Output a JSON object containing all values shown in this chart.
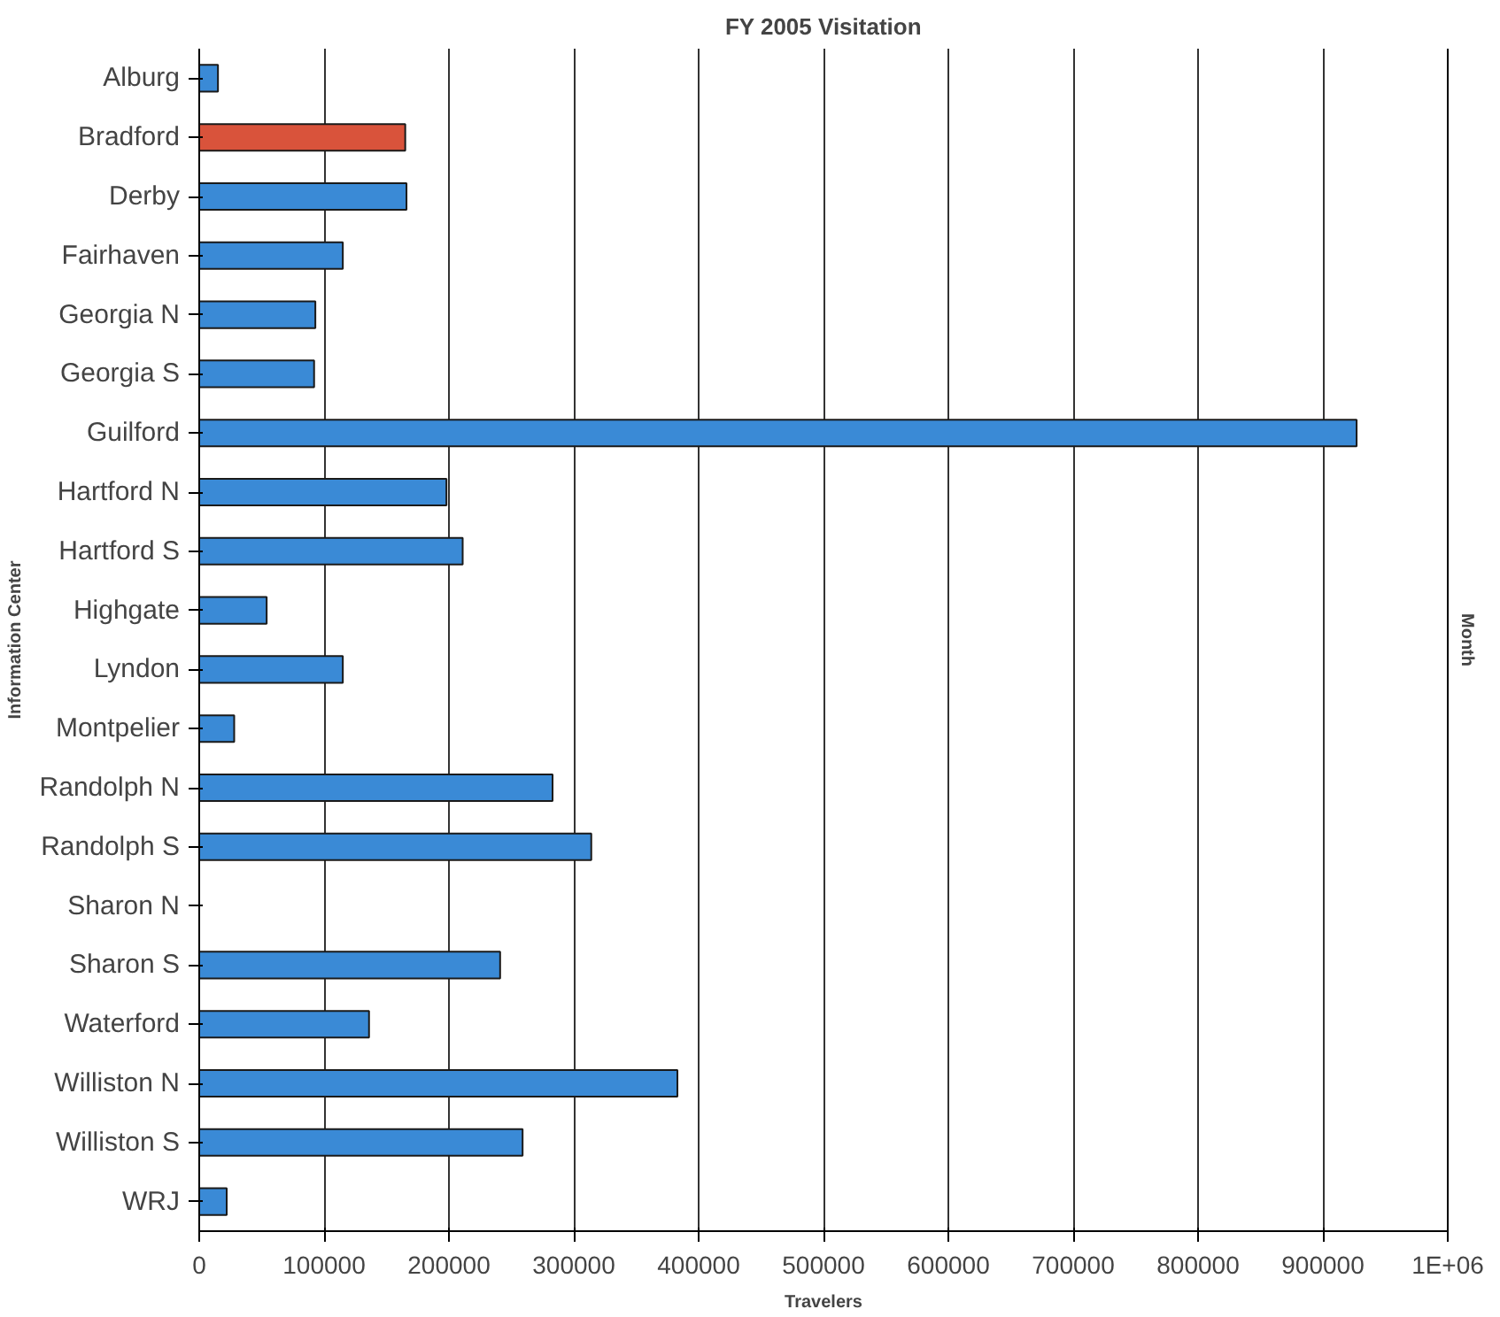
{
  "chart_data": {
    "type": "bar",
    "orientation": "horizontal",
    "title": "FY 2005 Visitation",
    "xlabel": "Travelers",
    "ylabel": "Information Center",
    "y2label": "Month",
    "categories": [
      "Alburg",
      "Bradford",
      "Derby",
      "Fairhaven",
      "Georgia N",
      "Georgia S",
      "Guilford",
      "Hartford N",
      "Hartford S",
      "Highgate",
      "Lyndon",
      "Montpelier",
      "Randolph N",
      "Randolph S",
      "Sharon N",
      "Sharon S",
      "Waterford",
      "Williston N",
      "Williston S",
      "WRJ"
    ],
    "values": [
      15000,
      165000,
      166000,
      115000,
      93000,
      92000,
      927000,
      198000,
      211000,
      54000,
      115000,
      28000,
      283000,
      314000,
      null,
      241000,
      136000,
      383000,
      259000,
      22000
    ],
    "colors": [
      "#3a8ad6",
      "#d9533b",
      "#3a8ad6",
      "#3a8ad6",
      "#3a8ad6",
      "#3a8ad6",
      "#3a8ad6",
      "#3a8ad6",
      "#3a8ad6",
      "#3a8ad6",
      "#3a8ad6",
      "#3a8ad6",
      "#3a8ad6",
      "#3a8ad6",
      "#3a8ad6",
      "#3a8ad6",
      "#3a8ad6",
      "#3a8ad6",
      "#3a8ad6",
      "#3a8ad6"
    ],
    "xlim": [
      0,
      1000000
    ],
    "xticks": [
      0,
      100000,
      200000,
      300000,
      400000,
      500000,
      600000,
      700000,
      800000,
      900000,
      {
        "value": 1000000,
        "label": "1E+06"
      }
    ],
    "grid": "x"
  }
}
